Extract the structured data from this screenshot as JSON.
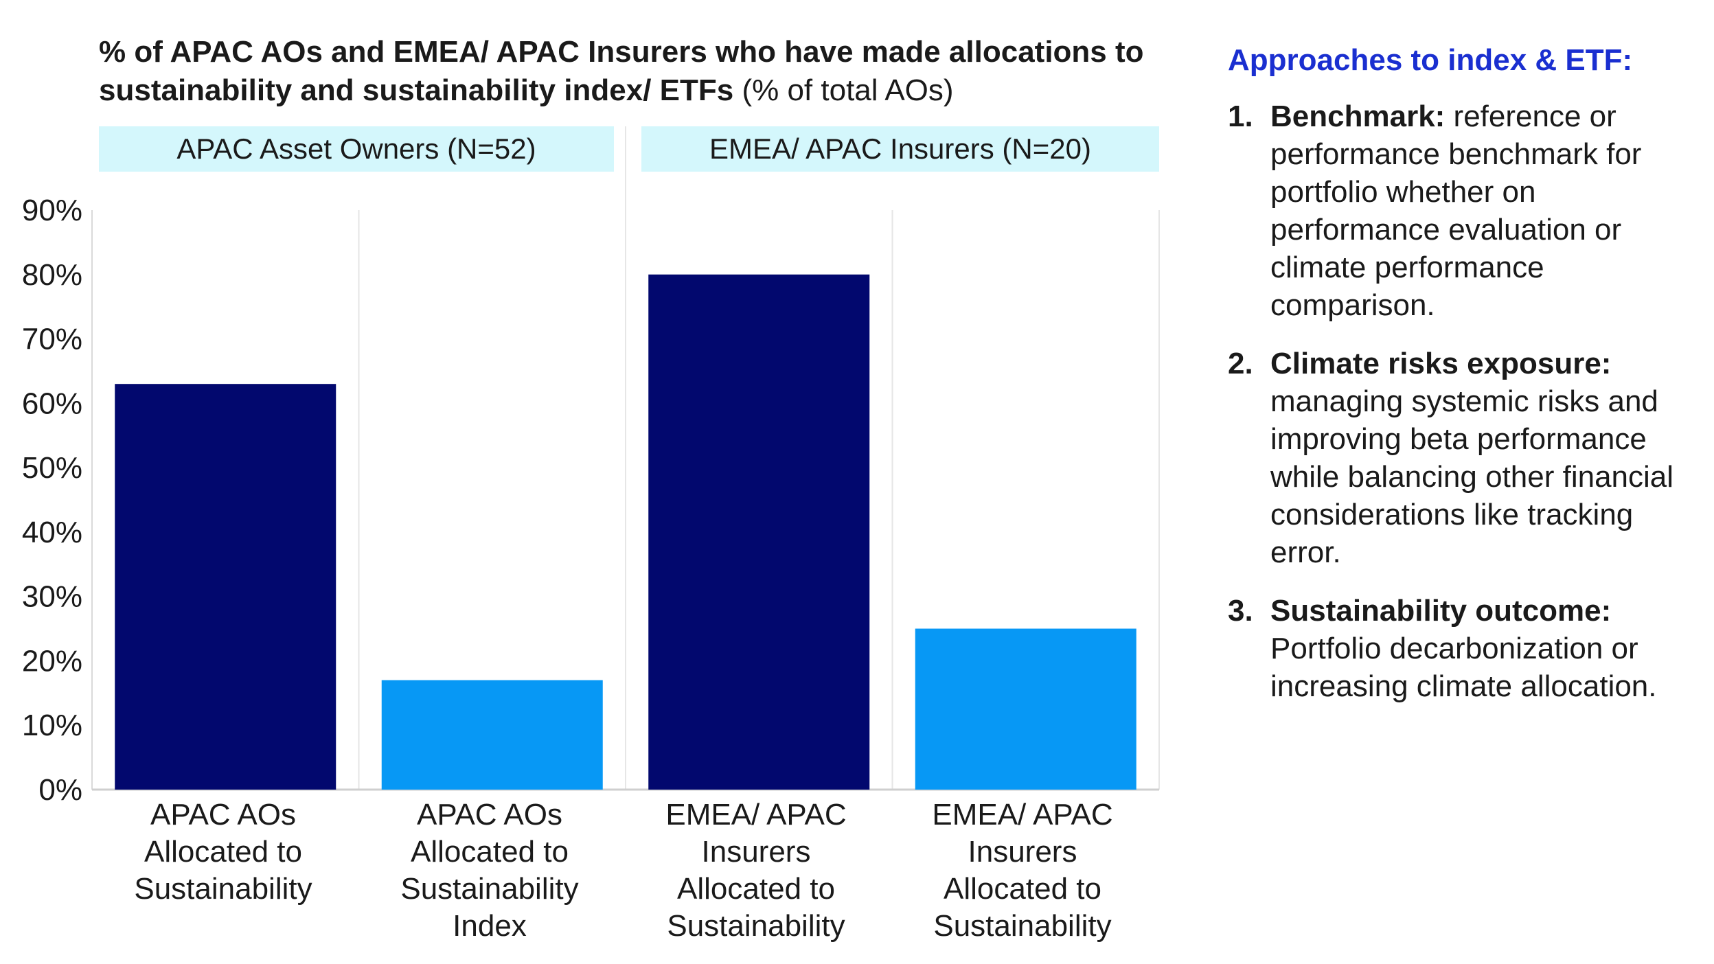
{
  "title": {
    "bold": "% of APAC AOs and EMEA/ APAC Insurers who have made allocations to sustainability and sustainability index/ ETFs",
    "normal": "(% of total AOs)"
  },
  "groups": [
    "APAC Asset Owners (N=52)",
    "EMEA/ APAC Insurers (N=20)"
  ],
  "chart_data": {
    "type": "bar",
    "categories": [
      "APAC AOs Allocated to Sustainability",
      "APAC AOs Allocated to Sustainability Index",
      "EMEA/ APAC Insurers Allocated to Sustainability",
      "EMEA/ APAC Insurers Allocated to Sustainability"
    ],
    "values": [
      63,
      17,
      80,
      25
    ],
    "bar_colors": [
      "#02086e",
      "#0798f5",
      "#02086e",
      "#0798f5"
    ],
    "ylim": [
      0,
      90
    ],
    "yticks": [
      "0%",
      "10%",
      "20%",
      "30%",
      "40%",
      "50%",
      "60%",
      "70%",
      "80%",
      "90%"
    ],
    "grid": false
  },
  "side_panel": {
    "title": "Approaches to index & ETF:",
    "items": [
      {
        "num": "1.",
        "title": "Benchmark:",
        "text": "reference or performance benchmark for portfolio whether on performance evaluation or climate performance comparison."
      },
      {
        "num": "2.",
        "title": "Climate risks exposure:",
        "text": "managing systemic risks and improving beta performance while balancing other financial considerations like tracking error."
      },
      {
        "num": "3.",
        "title": "Sustainability outcome:",
        "text": "Portfolio decarbonization or increasing climate allocation."
      }
    ]
  },
  "colors": {
    "accent": "#1a2fd0",
    "dark_bar": "#02086e",
    "light_bar": "#0798f5",
    "group_header_bg": "#d4f7fc"
  }
}
